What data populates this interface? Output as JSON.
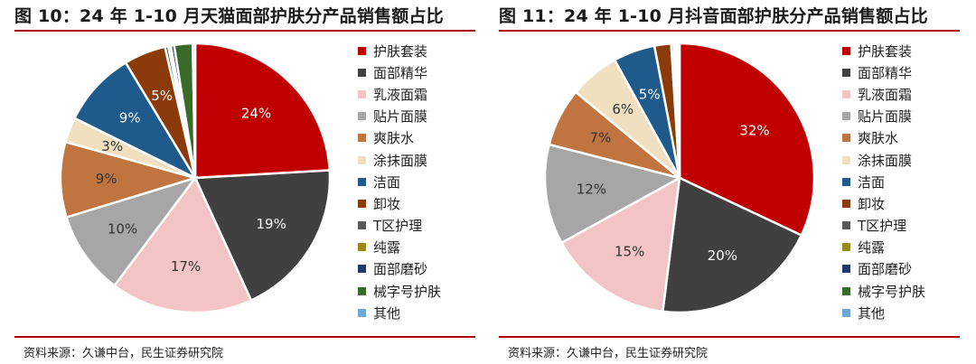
{
  "charts": [
    {
      "title": "图 10：24 年 1-10 月天猫面部护肤分产品销售额占比",
      "source": "资料来源：久谦中台，民生证券研究院"
    },
    {
      "title": "图 11：24 年 1-10 月抖音面部护肤分产品销售额占比",
      "source": "资料来源：久谦中台，民生证券研究院"
    }
  ],
  "legend_colors": [
    "#c00000",
    "#404040",
    "#f2c4c6",
    "#a6a6a6",
    "#c07440",
    "#f0e0c0",
    "#1f5a8c",
    "#8b3a0a",
    "#595959",
    "#9a8a1a",
    "#1f3a6a",
    "#3a6a2a",
    "#6fa8d8"
  ],
  "chart_data": [
    {
      "type": "pie",
      "title": "图 10：24 年 1-10 月天猫面部护肤分产品销售额占比",
      "categories": [
        "护肤套装",
        "面部精华",
        "乳液面霜",
        "贴片面膜",
        "爽肤水",
        "涂抹面膜",
        "洁面",
        "卸妆",
        "T区护理",
        "纯露",
        "面部磨砂",
        "械字号护肤",
        "其他"
      ],
      "values": [
        24,
        19,
        17,
        10,
        9,
        3,
        9,
        5,
        0.4,
        0.3,
        0.4,
        2.2,
        0.3
      ],
      "data_labels": [
        "24%",
        "19%",
        "17%",
        "10%",
        "9%",
        "3%",
        "9%",
        "5%",
        "",
        "",
        "",
        "",
        ""
      ],
      "legend_position": "right"
    },
    {
      "type": "pie",
      "title": "图 11：24 年 1-10 月抖音面部护肤分产品销售额占比",
      "categories": [
        "护肤套装",
        "面部精华",
        "乳液面霜",
        "贴片面膜",
        "爽肤水",
        "涂抹面膜",
        "洁面",
        "卸妆",
        "T区护理",
        "纯露",
        "面部磨砂",
        "械字号护肤",
        "其他"
      ],
      "values": [
        32,
        20,
        15,
        12,
        7,
        6,
        5,
        2,
        0.3,
        0.2,
        0.2,
        0.1,
        0.2
      ],
      "data_labels": [
        "32%",
        "20%",
        "15%",
        "12%",
        "7%",
        "6%",
        "5%",
        "",
        "",
        "",
        "",
        "",
        ""
      ],
      "legend_position": "right"
    }
  ]
}
